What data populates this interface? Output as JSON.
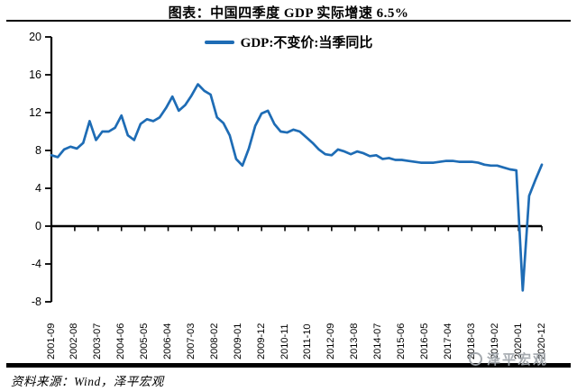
{
  "title": "图表：中国四季度 GDP 实际增速 6.5%",
  "legend": {
    "label": "GDP:不变价:当季同比"
  },
  "source_note": "资料来源：Wind，泽平宏观",
  "watermark": {
    "text": "泽平宏观"
  },
  "colors": {
    "series_line": "#1E6CB5",
    "axis": "#000000",
    "watermark_gray": "#9EA3A9"
  },
  "chart_data": {
    "type": "line",
    "title": "图表：中国四季度 GDP 实际增速 6.5%",
    "legend_entries": [
      "GDP:不变价:当季同比"
    ],
    "legend_position": "top-center",
    "grid": false,
    "x_start": "2001-09",
    "x_step_months": 3,
    "x_tick_labels": [
      "2001-09",
      "2002-08",
      "2003-07",
      "2004-06",
      "2005-05",
      "2006-04",
      "2007-03",
      "2008-02",
      "2009-01",
      "2009-12",
      "2010-11",
      "2011-10",
      "2012-09",
      "2013-08",
      "2014-07",
      "2015-06",
      "2016-05",
      "2017-04",
      "2018-03",
      "2019-02",
      "2020-01",
      "2020-12"
    ],
    "y_ticks": [
      20,
      16,
      12,
      8,
      4,
      0,
      -4,
      -8
    ],
    "ylim": [
      -8,
      20
    ],
    "series": [
      {
        "name": "GDP:不变价:当季同比",
        "color": "#1E6CB5",
        "values": [
          7.5,
          7.3,
          8.1,
          8.4,
          8.2,
          8.8,
          11.1,
          9.1,
          10.0,
          10.0,
          10.4,
          11.7,
          9.6,
          9.1,
          10.8,
          11.3,
          11.1,
          11.5,
          12.5,
          13.7,
          12.2,
          12.8,
          13.8,
          15.0,
          14.3,
          13.9,
          11.5,
          10.9,
          9.6,
          7.1,
          6.4,
          8.2,
          10.6,
          11.9,
          12.2,
          10.8,
          10.0,
          9.9,
          10.2,
          10.0,
          9.4,
          8.8,
          8.1,
          7.6,
          7.5,
          8.1,
          7.9,
          7.6,
          7.9,
          7.7,
          7.4,
          7.5,
          7.1,
          7.2,
          7.0,
          7.0,
          6.9,
          6.8,
          6.7,
          6.7,
          6.7,
          6.8,
          6.9,
          6.9,
          6.8,
          6.8,
          6.8,
          6.7,
          6.5,
          6.4,
          6.4,
          6.2,
          6.0,
          5.9,
          -6.8,
          3.2,
          4.9,
          6.5
        ]
      }
    ]
  }
}
